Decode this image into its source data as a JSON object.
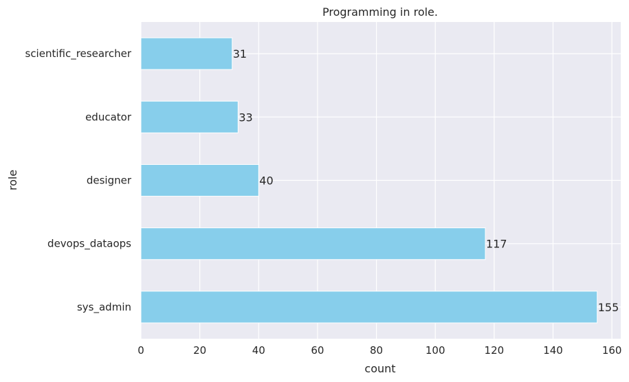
{
  "chart_data": {
    "type": "bar",
    "orientation": "horizontal",
    "title": "Programming in role.",
    "xlabel": "count",
    "ylabel": "role",
    "categories": [
      "sys_admin",
      "devops_dataops",
      "designer",
      "educator",
      "scientific_researcher"
    ],
    "values": [
      155,
      117,
      40,
      33,
      31
    ],
    "data_labels": [
      "155",
      "117",
      "40",
      "33",
      "31"
    ],
    "xlim": [
      0,
      163
    ],
    "x_ticks": [
      0,
      20,
      40,
      60,
      80,
      100,
      120,
      140,
      160
    ],
    "x_tick_labels": [
      "0",
      "20",
      "40",
      "60",
      "80",
      "100",
      "120",
      "140",
      "160"
    ],
    "grid": true,
    "bar_color": "#87CEEB",
    "background_color": "#EAEAF2",
    "grid_color": "#FFFFFF"
  }
}
